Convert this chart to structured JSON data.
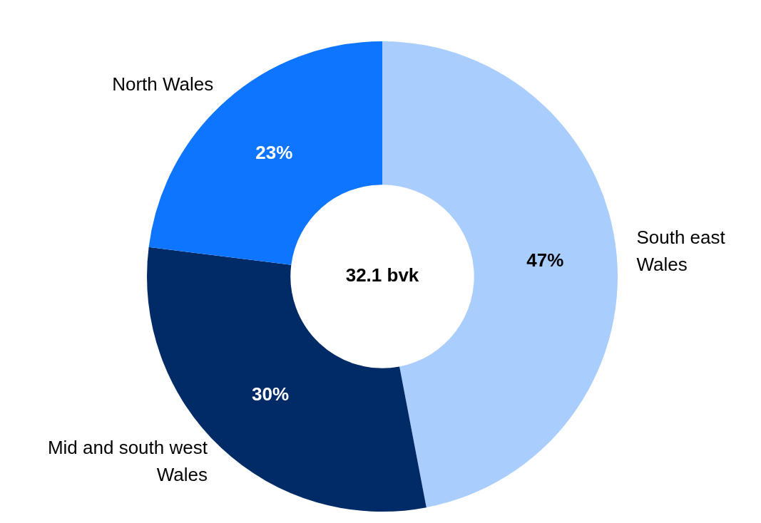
{
  "chart_data": {
    "type": "donut",
    "categories": [
      "South east Wales",
      "Mid and south west Wales",
      "North Wales"
    ],
    "values": [
      47,
      30,
      23
    ],
    "colors": [
      "#a9cdfd",
      "#002b66",
      "#0d75ff"
    ],
    "value_labels": [
      "47%",
      "30%",
      "23%"
    ],
    "legend": false,
    "annotations": [
      "32.1 bvk"
    ]
  }
}
